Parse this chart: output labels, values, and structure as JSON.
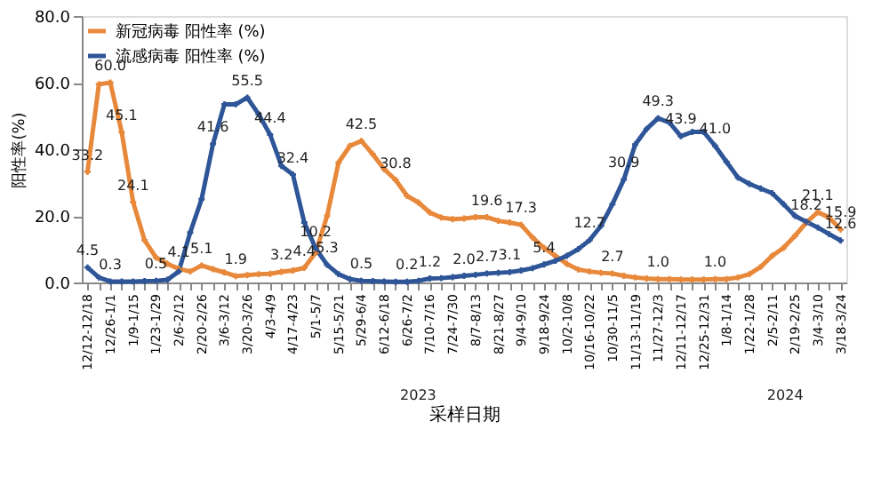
{
  "chart_data": {
    "type": "line",
    "xlabel": "采样日期",
    "ylabel": "阳性率(%)",
    "categories": [
      "12/12-12/18",
      null,
      "12/26-1/1",
      null,
      "1/9-1/15",
      null,
      "1/23-1/29",
      null,
      "2/6-2/12",
      null,
      "2/20-2/26",
      null,
      "3/6-3/12",
      null,
      "3/20-3/26",
      null,
      "4/3-4/9",
      null,
      "4/17-4/23",
      null,
      "5/1-5/7",
      null,
      "5/15-5/21",
      null,
      "5/29-6/4",
      null,
      "6/12-6/18",
      null,
      "6/26-7/2",
      null,
      "7/10-7/16",
      null,
      "7/24-7/30",
      null,
      "8/7-8/13",
      null,
      "8/21-8/27",
      null,
      "9/4-9/10",
      null,
      "9/18-9/24",
      null,
      "10/2-10/8",
      null,
      "10/16-10/22",
      null,
      "10/30-11/5",
      null,
      "11/13-11/19",
      null,
      "11/27-12/3",
      null,
      "12/11-12/17",
      null,
      "12/25-12/31",
      null,
      "1/8-1/14",
      null,
      "1/22-1/28",
      null,
      "2/5-2/11",
      null,
      "2/19-2/25",
      null,
      "3/4-3/10",
      null,
      "3/18-3/24"
    ],
    "series": [
      {
        "name": "新冠病毒 阳性率 (%)",
        "color": "#e8883a",
        "values": [
          33.2,
          59.5,
          60.0,
          45.1,
          24.1,
          12.7,
          7.5,
          5.6,
          4.1,
          3.3,
          5.1,
          4.0,
          3.0,
          1.9,
          2.2,
          2.5,
          2.6,
          3.2,
          3.6,
          4.4,
          9.0,
          20.0,
          36.0,
          41.0,
          42.5,
          38.5,
          34.0,
          30.8,
          26.0,
          24.0,
          21.0,
          19.5,
          19.0,
          19.2,
          19.6,
          19.6,
          18.5,
          18.0,
          17.3,
          13.5,
          10.4,
          8.0,
          5.6,
          3.9,
          3.3,
          2.9,
          2.7,
          2.0,
          1.5,
          1.2,
          1.0,
          1.0,
          0.9,
          0.9,
          0.9,
          1.0,
          1.0,
          1.5,
          2.5,
          4.7,
          8.0,
          10.4,
          14.0,
          18.0,
          21.1,
          19.5,
          15.9
        ],
        "value_labels": [
          "33.2",
          null,
          "60.0",
          "45.1",
          "24.1",
          null,
          null,
          null,
          "4.1",
          null,
          "5.1",
          null,
          null,
          "1.9",
          null,
          null,
          null,
          "3.2",
          null,
          "4.4",
          null,
          null,
          null,
          null,
          "42.5",
          null,
          null,
          "30.8",
          null,
          null,
          null,
          null,
          null,
          null,
          null,
          "19.6",
          null,
          null,
          "17.3",
          null,
          null,
          null,
          null,
          null,
          null,
          null,
          "2.7",
          null,
          null,
          null,
          "1.0",
          null,
          null,
          null,
          null,
          "1.0",
          null,
          null,
          null,
          null,
          null,
          null,
          null,
          null,
          "21.1",
          null,
          "15.9"
        ]
      },
      {
        "name": "流感病毒 阳性率 (%)",
        "color": "#2e5597",
        "values": [
          4.5,
          1.5,
          0.3,
          0.3,
          0.3,
          0.4,
          0.5,
          0.8,
          3.3,
          15.0,
          25.0,
          41.6,
          53.5,
          53.5,
          55.5,
          50.5,
          44.4,
          35.0,
          32.4,
          18.0,
          10.2,
          5.3,
          2.5,
          1.0,
          0.5,
          0.4,
          0.3,
          0.2,
          0.2,
          0.5,
          1.2,
          1.3,
          1.6,
          2.0,
          2.3,
          2.7,
          2.9,
          3.1,
          3.6,
          4.3,
          5.4,
          6.5,
          8.0,
          10.0,
          12.7,
          17.0,
          23.5,
          30.9,
          41.4,
          46.1,
          49.3,
          48.0,
          43.9,
          45.2,
          45.2,
          41.0,
          36.2,
          31.5,
          29.6,
          28.2,
          26.8,
          23.5,
          20.0,
          18.2,
          16.5,
          14.5,
          12.6
        ],
        "value_labels": [
          "4.5",
          null,
          "0.3",
          null,
          null,
          null,
          "0.5",
          null,
          null,
          null,
          null,
          "41.6",
          null,
          null,
          "55.5",
          null,
          "44.4",
          null,
          "32.4",
          null,
          "10.2",
          "5.3",
          null,
          null,
          "0.5",
          null,
          null,
          null,
          "0.2",
          null,
          "1.2",
          null,
          null,
          "2.0",
          null,
          "2.7",
          null,
          "3.1",
          null,
          null,
          "5.4",
          null,
          null,
          null,
          "12.7",
          null,
          null,
          "30.9",
          null,
          null,
          "49.3",
          null,
          "43.9",
          null,
          null,
          "41.0",
          null,
          null,
          null,
          null,
          null,
          null,
          null,
          "18.2",
          null,
          null,
          "12.6"
        ]
      }
    ],
    "ylim": [
      0,
      80
    ],
    "yticks": [
      {
        "value": 0,
        "label": "0.0"
      },
      {
        "value": 20,
        "label": "20.0"
      },
      {
        "value": 40,
        "label": "40.0"
      },
      {
        "value": 60,
        "label": "60.0"
      },
      {
        "value": 80,
        "label": "80.0"
      }
    ],
    "annotations": [
      "2023",
      "2024"
    ],
    "legend": "top left",
    "grid": false,
    "marker": "cross",
    "line_style": "solid"
  }
}
